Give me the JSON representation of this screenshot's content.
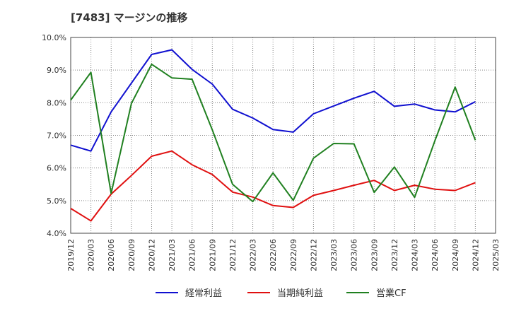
{
  "chart_data": {
    "type": "line",
    "title": "[7483]  マージンの推移",
    "xlabel": "",
    "ylabel": "",
    "categories": [
      "2019/12",
      "2020/03",
      "2020/06",
      "2020/09",
      "2020/12",
      "2021/03",
      "2021/06",
      "2021/09",
      "2021/12",
      "2022/03",
      "2022/06",
      "2022/09",
      "2022/12",
      "2023/03",
      "2023/06",
      "2023/09",
      "2023/12",
      "2024/03",
      "2024/06",
      "2024/09",
      "2024/12",
      "2025/03"
    ],
    "ylim": [
      4.0,
      10.0
    ],
    "yticks": [
      "4.0%",
      "5.0%",
      "6.0%",
      "7.0%",
      "8.0%",
      "9.0%",
      "10.0%"
    ],
    "grid": true,
    "legend_position": "bottom",
    "series": [
      {
        "name": "経常利益",
        "color": "#1010d0",
        "values": [
          6.7,
          6.52,
          7.72,
          8.6,
          9.48,
          9.62,
          9.02,
          8.57,
          7.8,
          7.53,
          7.18,
          7.1,
          7.66,
          7.9,
          8.14,
          8.35,
          7.89,
          7.96,
          7.78,
          7.72,
          8.03,
          null
        ]
      },
      {
        "name": "当期純利益",
        "color": "#e01010",
        "values": [
          4.76,
          4.38,
          5.2,
          5.77,
          6.36,
          6.52,
          6.1,
          5.8,
          5.26,
          5.11,
          4.85,
          4.79,
          5.16,
          5.31,
          5.47,
          5.62,
          5.31,
          5.47,
          5.35,
          5.31,
          5.55,
          null
        ]
      },
      {
        "name": "営業CF",
        "color": "#208020",
        "values": [
          8.08,
          8.93,
          5.22,
          7.98,
          9.18,
          8.76,
          8.72,
          7.17,
          5.5,
          4.97,
          5.85,
          5.01,
          6.3,
          6.75,
          6.74,
          5.25,
          6.03,
          5.1,
          6.83,
          8.48,
          6.85,
          null
        ]
      }
    ]
  }
}
